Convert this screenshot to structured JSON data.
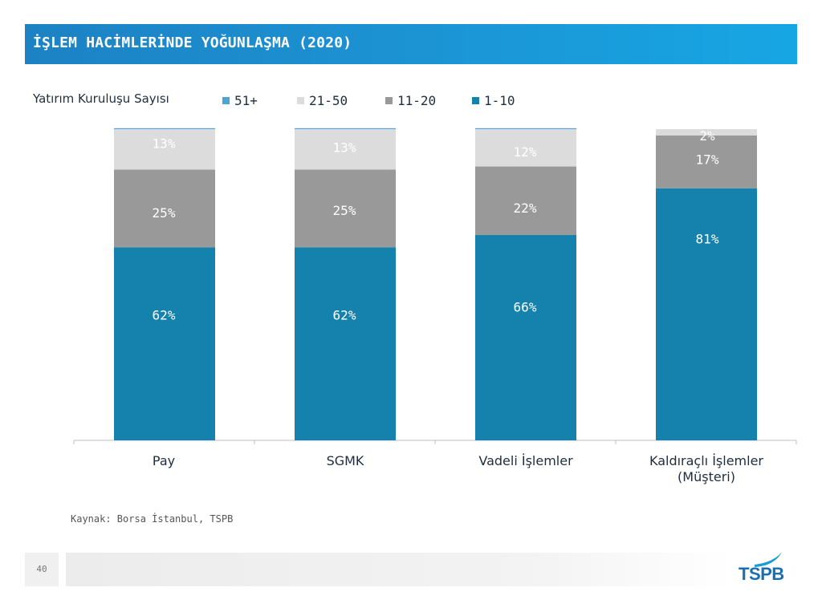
{
  "header": {
    "title": "İŞLEM HACİMLERİNDE YOĞUNLAŞMA (2020)"
  },
  "chart_data": {
    "type": "bar",
    "stacked": true,
    "title": "Yatırım Kuruluşu Sayısı",
    "categories": [
      "Pay",
      "SGMK",
      "Vadeli İşlemler",
      "Kaldıraçlı İşlemler (Müşteri)"
    ],
    "category_lines": [
      [
        "Pay"
      ],
      [
        "SGMK"
      ],
      [
        "Vadeli İşlemler"
      ],
      [
        "Kaldıraçlı İşlemler",
        "(Müşteri)"
      ]
    ],
    "series": [
      {
        "name": "1-10",
        "values": [
          62,
          62,
          66,
          81
        ],
        "labels": [
          "62%",
          "62%",
          "66%",
          "81%"
        ],
        "color": "#1482ad"
      },
      {
        "name": "11-20",
        "values": [
          25,
          25,
          22,
          17
        ],
        "labels": [
          "25%",
          "25%",
          "22%",
          "17%"
        ],
        "color": "#999999"
      },
      {
        "name": "21-50",
        "values": [
          13,
          13,
          12,
          2
        ],
        "labels": [
          "13%",
          "13%",
          "12%",
          "2%"
        ],
        "color": "#dcdcdc"
      },
      {
        "name": "51+",
        "values": [
          0.3,
          0.3,
          0.3,
          0
        ],
        "labels": [
          "",
          "",
          "",
          ""
        ],
        "color": "#4ba3d6"
      }
    ],
    "legend_order": [
      "51+",
      "21-50",
      "11-20",
      "1-10"
    ],
    "ylim": [
      0,
      100
    ],
    "xlabel": "",
    "ylabel": "",
    "grid": false
  },
  "footer": {
    "source": "Kaynak: Borsa İstanbul, TSPB",
    "page_number": "40",
    "logo_text": "TSPB"
  }
}
